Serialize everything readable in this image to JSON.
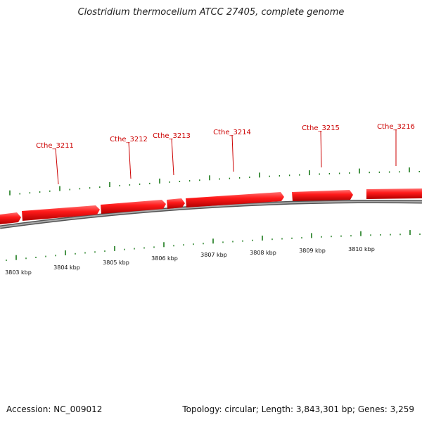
{
  "title": "Clostridium thermocellum ATCC 27405, complete genome",
  "footer": {
    "accession": "Accession: NC_009012",
    "summary": "Topology: circular; Length: 3,843,301 bp; Genes: 3,259"
  },
  "genes": [
    {
      "label": "Cthe_3211"
    },
    {
      "label": "Cthe_3212"
    },
    {
      "label": "Cthe_3213"
    },
    {
      "label": "Cthe_3214"
    },
    {
      "label": "Cthe_3215"
    },
    {
      "label": "Cthe_3216"
    }
  ],
  "kbp_labels": [
    "3803 kbp",
    "3804 kbp",
    "3805 kbp",
    "3806 kbp",
    "3807 kbp",
    "3808 kbp",
    "3809 kbp",
    "3810 kbp"
  ],
  "colors": {
    "gene": "#ee1111",
    "backbone": "#888888",
    "tick": "#1a7a1a",
    "label": "#cc0000"
  }
}
